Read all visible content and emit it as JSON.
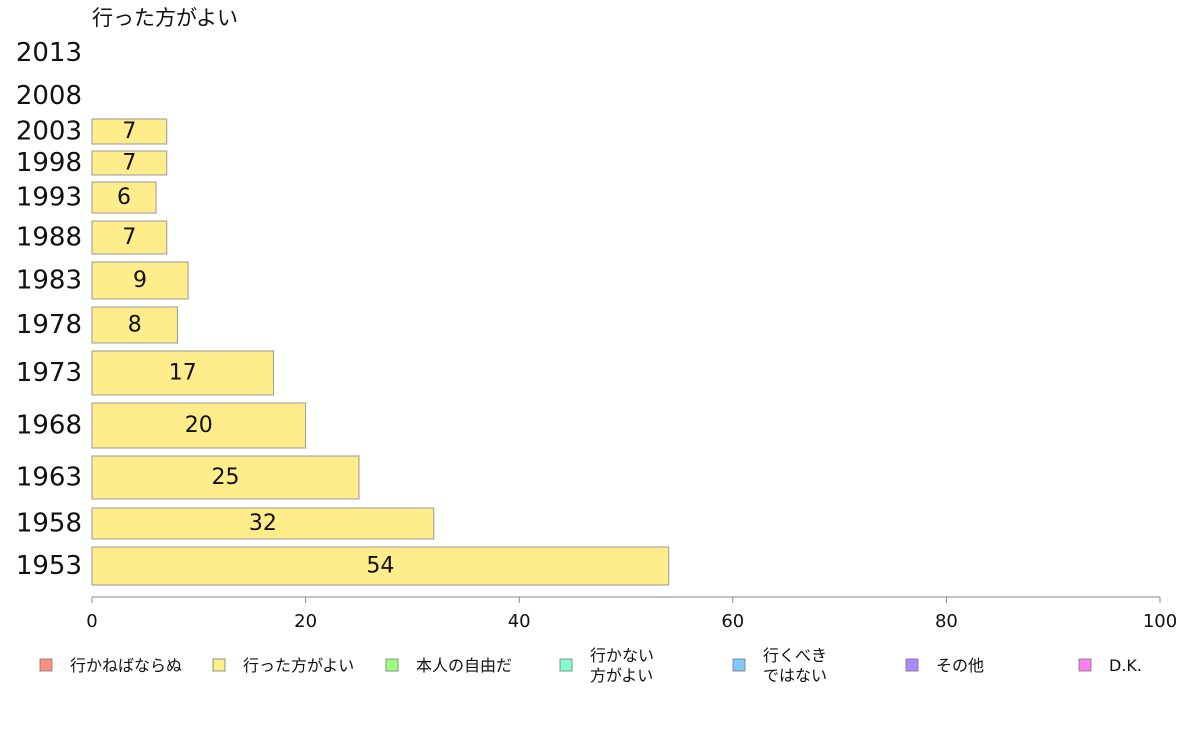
{
  "chart_data": {
    "type": "bar",
    "orientation": "horizontal",
    "title": "行った方がよい",
    "categories": [
      "2013",
      "2008",
      "2003",
      "1998",
      "1993",
      "1988",
      "1983",
      "1978",
      "1973",
      "1968",
      "1963",
      "1958",
      "1953"
    ],
    "series": [
      {
        "name": "行った方がよい",
        "values": [
          null,
          null,
          7,
          7,
          6,
          7,
          9,
          8,
          17,
          20,
          25,
          32,
          54
        ]
      }
    ],
    "bar_color": "#ffec8b",
    "xlim": [
      0,
      100
    ],
    "xticks": [
      0,
      20,
      40,
      60,
      80,
      100
    ],
    "grid": false,
    "legend_position": "bottom",
    "legend": [
      {
        "label": "行かねばならぬ",
        "color": "#ff8f80"
      },
      {
        "label": "行った方がよい",
        "color": "#ffec8b"
      },
      {
        "label": "本人の自由だ",
        "color": "#a0ff7f"
      },
      {
        "label": "行かない\n方がよい",
        "color": "#80ffcc"
      },
      {
        "label": "行くべき\nではない",
        "color": "#80c8ff"
      },
      {
        "label": "その他",
        "color": "#a98bff"
      },
      {
        "label": "D.K.",
        "color": "#ff80ee"
      }
    ]
  }
}
